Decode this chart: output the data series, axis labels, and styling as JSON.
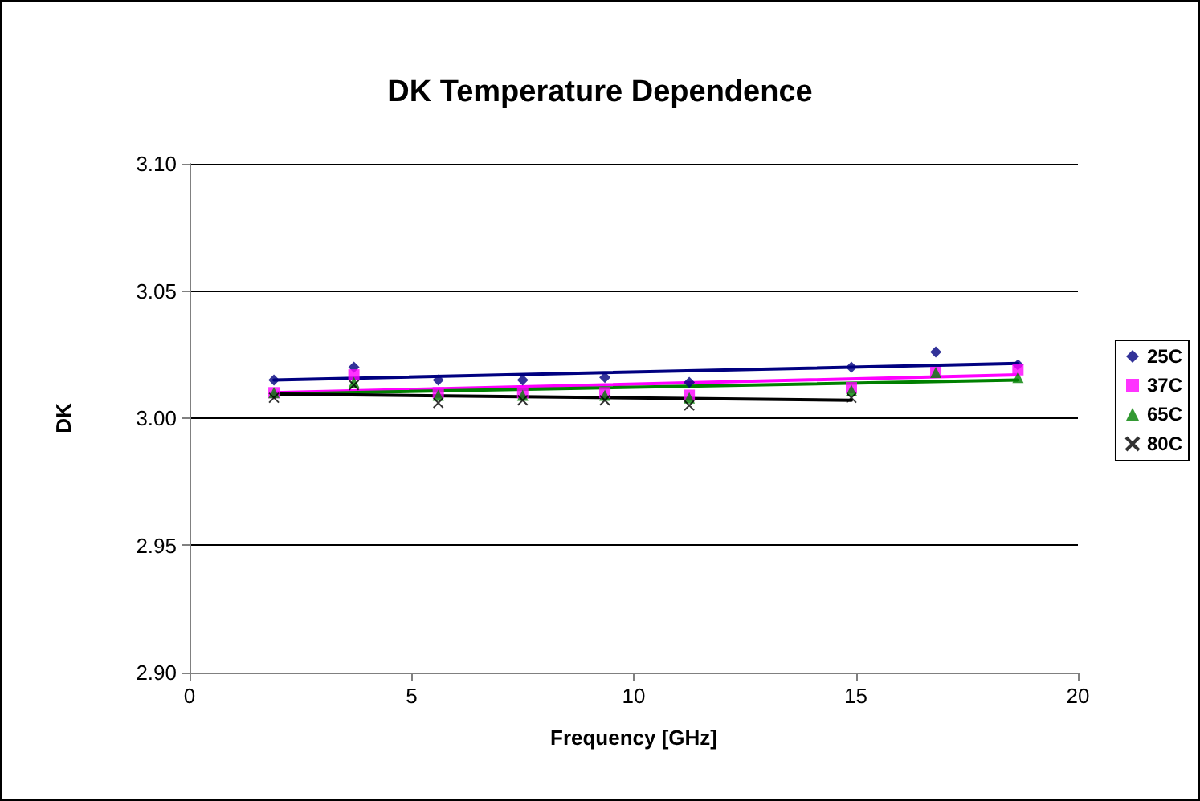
{
  "chart_data": {
    "type": "scatter",
    "title": "DK Temperature Dependence",
    "xlabel": "Frequency [GHz]",
    "ylabel": "DK",
    "x": [
      1.9,
      3.7,
      5.6,
      7.5,
      9.35,
      11.25,
      14.9,
      16.8,
      18.65
    ],
    "xlim": [
      0,
      20
    ],
    "xticks": [
      0,
      5,
      10,
      15,
      20
    ],
    "ylim": [
      2.9,
      3.1
    ],
    "yticks": [
      {
        "value": 2.9,
        "label": "2.90"
      },
      2.95,
      {
        "value": 3.0,
        "label": "3.00"
      },
      3.05,
      {
        "value": 3.1,
        "label": "3.10"
      }
    ],
    "grid": "y",
    "legend": "right",
    "series": [
      {
        "name": "25C",
        "color": "#000080",
        "marker": "diamond",
        "values": [
          3.015,
          3.02,
          3.015,
          3.015,
          3.016,
          3.014,
          3.02,
          3.026,
          3.021
        ]
      },
      {
        "name": "37C",
        "color": "#ff00ff",
        "marker": "square",
        "values": [
          3.01,
          3.017,
          3.01,
          3.01,
          3.01,
          3.009,
          3.012,
          3.018,
          3.019
        ]
      },
      {
        "name": "65C",
        "color": "#008000",
        "marker": "triangle",
        "values": [
          3.01,
          3.014,
          3.009,
          3.009,
          3.009,
          3.008,
          3.011,
          3.018,
          3.016
        ]
      },
      {
        "name": "80C",
        "color": "#000000",
        "marker": "cross",
        "values": [
          3.008,
          3.013,
          3.006,
          3.007,
          3.007,
          3.005,
          3.008,
          null,
          null
        ]
      },
      {
        "type": "line",
        "color": "#000080",
        "x": [
          1.9,
          18.65
        ],
        "values": [
          3.015,
          3.0215
        ]
      },
      {
        "type": "line",
        "color": "#ff00ff",
        "x": [
          1.9,
          18.65
        ],
        "values": [
          3.01,
          3.017
        ]
      },
      {
        "type": "line",
        "color": "#008000",
        "x": [
          1.9,
          18.65
        ],
        "values": [
          3.0095,
          3.015
        ]
      },
      {
        "type": "line",
        "color": "#000000",
        "x": [
          1.9,
          14.9
        ],
        "values": [
          3.0095,
          3.007
        ]
      }
    ]
  }
}
